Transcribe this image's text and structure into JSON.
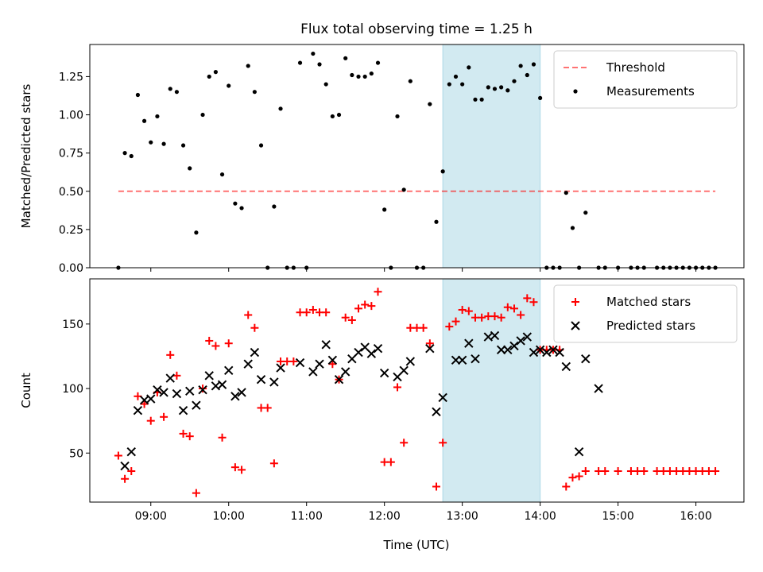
{
  "title": "Flux total observing time = 1.25 h",
  "chart_data": [
    {
      "type": "scatter",
      "title": "Flux total observing time = 1.25 h",
      "ylabel": "Matched/Predicted stars",
      "xlabel": "",
      "ylim": [
        0,
        1.46
      ],
      "yticks": [
        "0.00",
        "0.25",
        "0.50",
        "0.75",
        "1.00",
        "1.25"
      ],
      "highlight_span": {
        "start": "12:45",
        "end": "14:00",
        "color": "#add8e6"
      },
      "threshold": {
        "name": "Threshold",
        "value": 0.5,
        "x_range": [
          "08:35",
          "16:15"
        ],
        "color": "#ff0000",
        "style": "dashed"
      },
      "legend": {
        "location": "upper right",
        "entries": [
          "Threshold",
          "Measurements"
        ]
      },
      "series": [
        {
          "name": "Measurements",
          "marker": "dot",
          "color": "#000000",
          "points": [
            [
              "08:35",
              0.0
            ],
            [
              "08:40",
              0.75
            ],
            [
              "08:45",
              0.73
            ],
            [
              "08:50",
              1.13
            ],
            [
              "08:55",
              0.96
            ],
            [
              "09:00",
              0.82
            ],
            [
              "09:05",
              0.99
            ],
            [
              "09:10",
              0.81
            ],
            [
              "09:15",
              1.17
            ],
            [
              "09:20",
              1.15
            ],
            [
              "09:25",
              0.8
            ],
            [
              "09:30",
              0.65
            ],
            [
              "09:35",
              0.23
            ],
            [
              "09:40",
              1.0
            ],
            [
              "09:45",
              1.25
            ],
            [
              "09:50",
              1.28
            ],
            [
              "09:55",
              0.61
            ],
            [
              "10:00",
              1.19
            ],
            [
              "10:05",
              0.42
            ],
            [
              "10:10",
              0.39
            ],
            [
              "10:15",
              1.32
            ],
            [
              "10:20",
              1.15
            ],
            [
              "10:25",
              0.8
            ],
            [
              "10:30",
              0.0
            ],
            [
              "10:35",
              0.4
            ],
            [
              "10:40",
              1.04
            ],
            [
              "10:45",
              0.0
            ],
            [
              "10:50",
              0.0
            ],
            [
              "10:55",
              1.34
            ],
            [
              "11:00",
              0.0
            ],
            [
              "11:05",
              1.4
            ],
            [
              "11:10",
              1.33
            ],
            [
              "11:15",
              1.2
            ],
            [
              "11:20",
              0.99
            ],
            [
              "11:25",
              1.0
            ],
            [
              "11:30",
              1.37
            ],
            [
              "11:35",
              1.26
            ],
            [
              "11:40",
              1.25
            ],
            [
              "11:45",
              1.25
            ],
            [
              "11:50",
              1.27
            ],
            [
              "11:55",
              1.34
            ],
            [
              "12:00",
              0.38
            ],
            [
              "12:05",
              0.0
            ],
            [
              "12:10",
              0.99
            ],
            [
              "12:15",
              0.51
            ],
            [
              "12:20",
              1.22
            ],
            [
              "12:25",
              0.0
            ],
            [
              "12:30",
              0.0
            ],
            [
              "12:35",
              1.07
            ],
            [
              "12:40",
              0.3
            ],
            [
              "12:45",
              0.63
            ],
            [
              "12:50",
              1.2
            ],
            [
              "12:55",
              1.25
            ],
            [
              "13:00",
              1.2
            ],
            [
              "13:05",
              1.31
            ],
            [
              "13:10",
              1.1
            ],
            [
              "13:15",
              1.1
            ],
            [
              "13:20",
              1.18
            ],
            [
              "13:25",
              1.17
            ],
            [
              "13:30",
              1.18
            ],
            [
              "13:35",
              1.16
            ],
            [
              "13:40",
              1.22
            ],
            [
              "13:45",
              1.32
            ],
            [
              "13:50",
              1.26
            ],
            [
              "13:55",
              1.33
            ],
            [
              "14:00",
              1.11
            ],
            [
              "14:05",
              0.0
            ],
            [
              "14:10",
              0.0
            ],
            [
              "14:15",
              0.0
            ],
            [
              "14:20",
              0.49
            ],
            [
              "14:25",
              0.26
            ],
            [
              "14:30",
              0.0
            ],
            [
              "14:35",
              0.36
            ],
            [
              "14:45",
              0.0
            ],
            [
              "14:50",
              0.0
            ],
            [
              "15:00",
              0.0
            ],
            [
              "15:10",
              0.0
            ],
            [
              "15:15",
              0.0
            ],
            [
              "15:20",
              0.0
            ],
            [
              "15:30",
              0.0
            ],
            [
              "15:35",
              0.0
            ],
            [
              "15:40",
              0.0
            ],
            [
              "15:45",
              0.0
            ],
            [
              "15:50",
              0.0
            ],
            [
              "15:55",
              0.0
            ],
            [
              "16:00",
              0.0
            ],
            [
              "16:05",
              0.0
            ],
            [
              "16:10",
              0.0
            ],
            [
              "16:15",
              0.0
            ]
          ]
        }
      ]
    },
    {
      "type": "scatter",
      "xlabel": "Time (UTC)",
      "ylabel": "Count",
      "ylim": [
        12,
        185
      ],
      "yticks": [
        "50",
        "100",
        "150"
      ],
      "xticks": [
        "09:00",
        "10:00",
        "11:00",
        "12:00",
        "13:00",
        "14:00",
        "15:00",
        "16:00"
      ],
      "xlim": [
        "08:13",
        "16:37"
      ],
      "highlight_span": {
        "start": "12:45",
        "end": "14:00",
        "color": "#add8e6"
      },
      "legend": {
        "location": "upper right",
        "entries": [
          "Matched stars",
          "Predicted stars"
        ]
      },
      "series": [
        {
          "name": "Matched stars",
          "marker": "plus",
          "color": "#ff0000",
          "points": [
            [
              "08:35",
              48
            ],
            [
              "08:40",
              30
            ],
            [
              "08:45",
              36
            ],
            [
              "08:50",
              94
            ],
            [
              "08:55",
              88
            ],
            [
              "09:00",
              75
            ],
            [
              "09:05",
              97
            ],
            [
              "09:10",
              78
            ],
            [
              "09:15",
              126
            ],
            [
              "09:20",
              110
            ],
            [
              "09:25",
              65
            ],
            [
              "09:30",
              63
            ],
            [
              "09:35",
              19
            ],
            [
              "09:40",
              100
            ],
            [
              "09:45",
              137
            ],
            [
              "09:50",
              133
            ],
            [
              "09:55",
              62
            ],
            [
              "10:00",
              135
            ],
            [
              "10:05",
              39
            ],
            [
              "10:10",
              37
            ],
            [
              "10:15",
              157
            ],
            [
              "10:20",
              147
            ],
            [
              "10:25",
              85
            ],
            [
              "10:30",
              85
            ],
            [
              "10:35",
              42
            ],
            [
              "10:40",
              121
            ],
            [
              "10:45",
              121
            ],
            [
              "10:50",
              121
            ],
            [
              "10:55",
              159
            ],
            [
              "11:00",
              159
            ],
            [
              "11:05",
              161
            ],
            [
              "11:10",
              159
            ],
            [
              "11:15",
              159
            ],
            [
              "11:20",
              119
            ],
            [
              "11:25",
              107
            ],
            [
              "11:30",
              155
            ],
            [
              "11:35",
              153
            ],
            [
              "11:40",
              162
            ],
            [
              "11:45",
              165
            ],
            [
              "11:50",
              164
            ],
            [
              "11:55",
              175
            ],
            [
              "12:00",
              43
            ],
            [
              "12:05",
              43
            ],
            [
              "12:10",
              101
            ],
            [
              "12:15",
              58
            ],
            [
              "12:20",
              147
            ],
            [
              "12:25",
              147
            ],
            [
              "12:30",
              147
            ],
            [
              "12:35",
              135
            ],
            [
              "12:40",
              24
            ],
            [
              "12:45",
              58
            ],
            [
              "12:50",
              148
            ],
            [
              "12:55",
              152
            ],
            [
              "13:00",
              161
            ],
            [
              "13:05",
              160
            ],
            [
              "13:10",
              155
            ],
            [
              "13:15",
              155
            ],
            [
              "13:20",
              156
            ],
            [
              "13:25",
              156
            ],
            [
              "13:30",
              155
            ],
            [
              "13:35",
              163
            ],
            [
              "13:40",
              162
            ],
            [
              "13:45",
              157
            ],
            [
              "13:50",
              170
            ],
            [
              "13:55",
              167
            ],
            [
              "14:00",
              130
            ],
            [
              "14:05",
              130
            ],
            [
              "14:10",
              130
            ],
            [
              "14:15",
              130
            ],
            [
              "14:20",
              24
            ],
            [
              "14:25",
              31
            ],
            [
              "14:30",
              32
            ],
            [
              "14:35",
              36
            ],
            [
              "14:45",
              36
            ],
            [
              "14:50",
              36
            ],
            [
              "15:00",
              36
            ],
            [
              "15:10",
              36
            ],
            [
              "15:15",
              36
            ],
            [
              "15:20",
              36
            ],
            [
              "15:30",
              36
            ],
            [
              "15:35",
              36
            ],
            [
              "15:40",
              36
            ],
            [
              "15:45",
              36
            ],
            [
              "15:50",
              36
            ],
            [
              "15:55",
              36
            ],
            [
              "16:00",
              36
            ],
            [
              "16:05",
              36
            ],
            [
              "16:10",
              36
            ],
            [
              "16:15",
              36
            ]
          ]
        },
        {
          "name": "Predicted stars",
          "marker": "x",
          "color": "#000000",
          "points": [
            [
              "08:40",
              40
            ],
            [
              "08:45",
              51
            ],
            [
              "08:50",
              83
            ],
            [
              "08:55",
              91
            ],
            [
              "09:00",
              92
            ],
            [
              "09:05",
              99
            ],
            [
              "09:10",
              97
            ],
            [
              "09:15",
              108
            ],
            [
              "09:20",
              96
            ],
            [
              "09:25",
              83
            ],
            [
              "09:30",
              98
            ],
            [
              "09:35",
              87
            ],
            [
              "09:40",
              99
            ],
            [
              "09:45",
              110
            ],
            [
              "09:50",
              102
            ],
            [
              "09:55",
              103
            ],
            [
              "10:00",
              114
            ],
            [
              "10:05",
              94
            ],
            [
              "10:10",
              97
            ],
            [
              "10:15",
              119
            ],
            [
              "10:20",
              128
            ],
            [
              "10:25",
              107
            ],
            [
              "10:35",
              105
            ],
            [
              "10:40",
              116
            ],
            [
              "10:55",
              120
            ],
            [
              "11:05",
              113
            ],
            [
              "11:10",
              119
            ],
            [
              "11:15",
              134
            ],
            [
              "11:20",
              122
            ],
            [
              "11:25",
              107
            ],
            [
              "11:30",
              113
            ],
            [
              "11:35",
              123
            ],
            [
              "11:40",
              128
            ],
            [
              "11:45",
              132
            ],
            [
              "11:50",
              127
            ],
            [
              "11:55",
              131
            ],
            [
              "12:00",
              112
            ],
            [
              "12:10",
              109
            ],
            [
              "12:15",
              114
            ],
            [
              "12:20",
              121
            ],
            [
              "12:35",
              131
            ],
            [
              "12:40",
              82
            ],
            [
              "12:45",
              93
            ],
            [
              "12:55",
              122
            ],
            [
              "13:00",
              122
            ],
            [
              "13:05",
              135
            ],
            [
              "13:10",
              123
            ],
            [
              "13:20",
              140
            ],
            [
              "13:25",
              141
            ],
            [
              "13:30",
              130
            ],
            [
              "13:35",
              130
            ],
            [
              "13:40",
              133
            ],
            [
              "13:45",
              137
            ],
            [
              "13:50",
              140
            ],
            [
              "13:55",
              128
            ],
            [
              "14:00",
              130
            ],
            [
              "14:05",
              128
            ],
            [
              "14:10",
              130
            ],
            [
              "14:15",
              128
            ],
            [
              "14:20",
              117
            ],
            [
              "14:30",
              51
            ],
            [
              "14:35",
              123
            ],
            [
              "14:45",
              100
            ]
          ]
        }
      ]
    }
  ]
}
